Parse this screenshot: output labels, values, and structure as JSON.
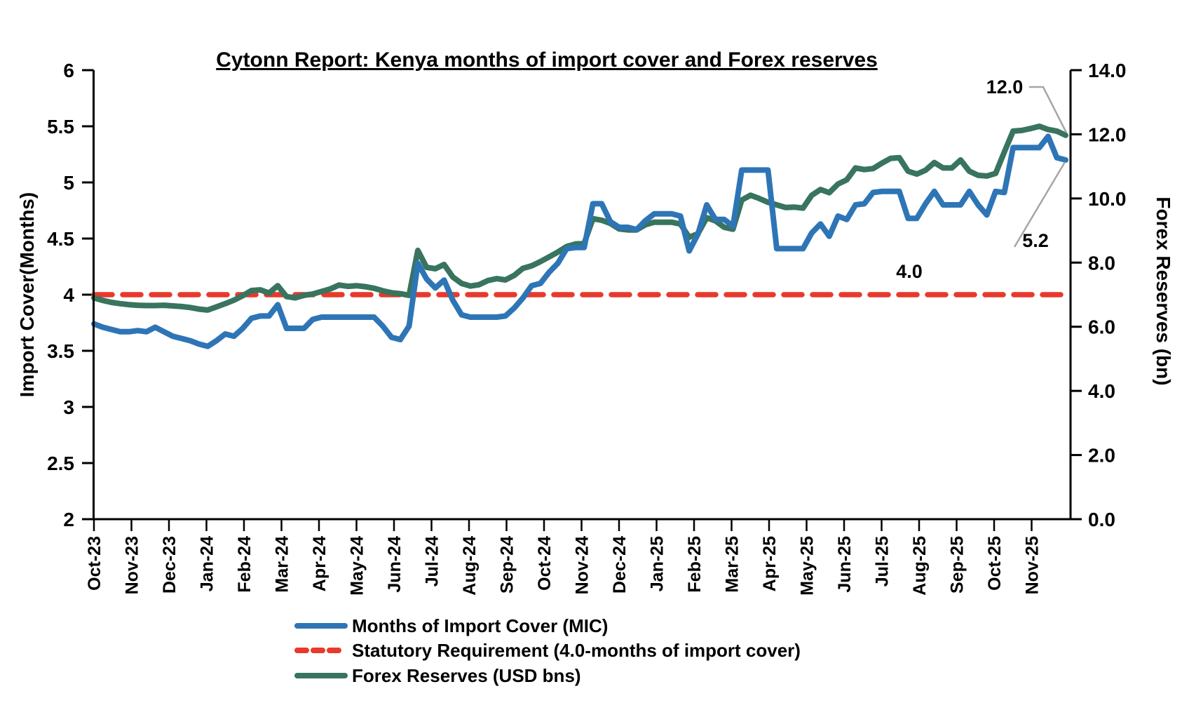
{
  "chart_data": {
    "type": "line",
    "title": "Cytonn Report: Kenya months of import cover and Forex reserves",
    "left_axis": {
      "title": "Import Cover(Months)",
      "min": 2,
      "max": 6,
      "tick_step": 0.5,
      "tick_labels": [
        "6",
        "5.5",
        "5",
        "4.5",
        "4",
        "3.5",
        "3",
        "2.5",
        "2"
      ]
    },
    "right_axis": {
      "title": "Forex Reserves (bn)",
      "min": 0,
      "max": 14,
      "tick_step": 2,
      "tick_labels": [
        "14.0",
        "12.0",
        "10.0",
        "8.0",
        "6.0",
        "4.0",
        "2.0",
        "0.0"
      ]
    },
    "x_axis": {
      "tick_labels": [
        "Oct-23",
        "Nov-23",
        "Dec-23",
        "Jan-24",
        "Feb-24",
        "Mar-24",
        "Apr-24",
        "May-24",
        "Jun-24",
        "Jul-24",
        "Aug-24",
        "Sep-24",
        "Oct-24",
        "Nov-24",
        "Dec-24",
        "Jan-25",
        "Feb-25",
        "Mar-25",
        "Apr-25",
        "May-25",
        "Jun-25",
        "Jul-25",
        "Aug-25",
        "Sep-25",
        "Oct-25",
        "Nov-25"
      ],
      "frequency": "weekly"
    },
    "grid": "off",
    "legend_position": "bottom",
    "series": [
      {
        "name": "Months of Import Cover (MIC)",
        "axis": "left",
        "color": "#2E75B6",
        "style": "solid",
        "values": [
          3.74,
          3.71,
          3.69,
          3.67,
          3.67,
          3.68,
          3.67,
          3.71,
          3.67,
          3.63,
          3.61,
          3.59,
          3.56,
          3.54,
          3.59,
          3.65,
          3.63,
          3.7,
          3.79,
          3.81,
          3.81,
          3.91,
          3.7,
          3.7,
          3.7,
          3.78,
          3.8,
          3.8,
          3.8,
          3.8,
          3.8,
          3.8,
          3.8,
          3.72,
          3.62,
          3.6,
          3.72,
          4.28,
          4.14,
          4.06,
          4.13,
          3.95,
          3.82,
          3.8,
          3.8,
          3.8,
          3.8,
          3.81,
          3.88,
          3.97,
          4.08,
          4.1,
          4.2,
          4.28,
          4.41,
          4.42,
          4.42,
          4.81,
          4.81,
          4.65,
          4.6,
          4.6,
          4.58,
          4.66,
          4.72,
          4.72,
          4.72,
          4.7,
          4.39,
          4.54,
          4.8,
          4.67,
          4.67,
          4.61,
          5.11,
          5.11,
          5.11,
          5.11,
          4.41,
          4.41,
          4.41,
          4.41,
          4.55,
          4.63,
          4.52,
          4.7,
          4.67,
          4.8,
          4.81,
          4.91,
          4.92,
          4.92,
          4.92,
          4.68,
          4.68,
          4.81,
          4.92,
          4.8,
          4.8,
          4.8,
          4.92,
          4.8,
          4.71,
          4.92,
          4.91,
          5.31,
          5.31,
          5.31,
          5.31,
          5.41,
          5.22,
          5.2
        ]
      },
      {
        "name": "Statutory Requirement (4.0-months of import cover)",
        "axis": "left",
        "color": "#E8392C",
        "style": "dashed",
        "constant": 4.0
      },
      {
        "name": "Forex Reserves (USD bns)",
        "axis": "right",
        "color": "#38745E",
        "style": "solid",
        "values": [
          6.9,
          6.82,
          6.76,
          6.72,
          6.69,
          6.67,
          6.66,
          6.66,
          6.67,
          6.65,
          6.63,
          6.6,
          6.55,
          6.52,
          6.62,
          6.72,
          6.83,
          6.97,
          7.13,
          7.15,
          7.05,
          7.28,
          6.94,
          6.9,
          6.98,
          7.02,
          7.1,
          7.18,
          7.3,
          7.26,
          7.28,
          7.25,
          7.2,
          7.12,
          7.06,
          7.03,
          6.98,
          8.38,
          7.85,
          7.81,
          7.94,
          7.55,
          7.35,
          7.27,
          7.31,
          7.44,
          7.5,
          7.46,
          7.6,
          7.82,
          7.9,
          8.03,
          8.18,
          8.33,
          8.5,
          8.58,
          8.6,
          9.37,
          9.32,
          9.22,
          9.05,
          9.02,
          9.02,
          9.18,
          9.26,
          9.26,
          9.26,
          9.2,
          8.79,
          8.9,
          9.4,
          9.3,
          9.1,
          9.04,
          9.95,
          10.1,
          10.0,
          9.88,
          9.8,
          9.72,
          9.73,
          9.7,
          10.1,
          10.28,
          10.18,
          10.45,
          10.58,
          10.95,
          10.9,
          10.93,
          11.1,
          11.25,
          11.27,
          10.85,
          10.76,
          10.88,
          11.12,
          10.95,
          10.95,
          11.2,
          10.85,
          10.72,
          10.7,
          10.78,
          11.45,
          12.1,
          12.12,
          12.18,
          12.25,
          12.15,
          12.1,
          11.97
        ]
      }
    ],
    "annotations": [
      {
        "text": "12.0",
        "target": "forex-reserves-end"
      },
      {
        "text": "5.2",
        "target": "mic-end"
      },
      {
        "text": "4.0",
        "target": "statutory-line"
      }
    ],
    "colors": {
      "mic_blue": "#2E75B6",
      "statutory_red": "#E8392C",
      "forex_green": "#38745E",
      "leader_gray": "#A6A6A6",
      "axis_black": "#000000"
    }
  }
}
